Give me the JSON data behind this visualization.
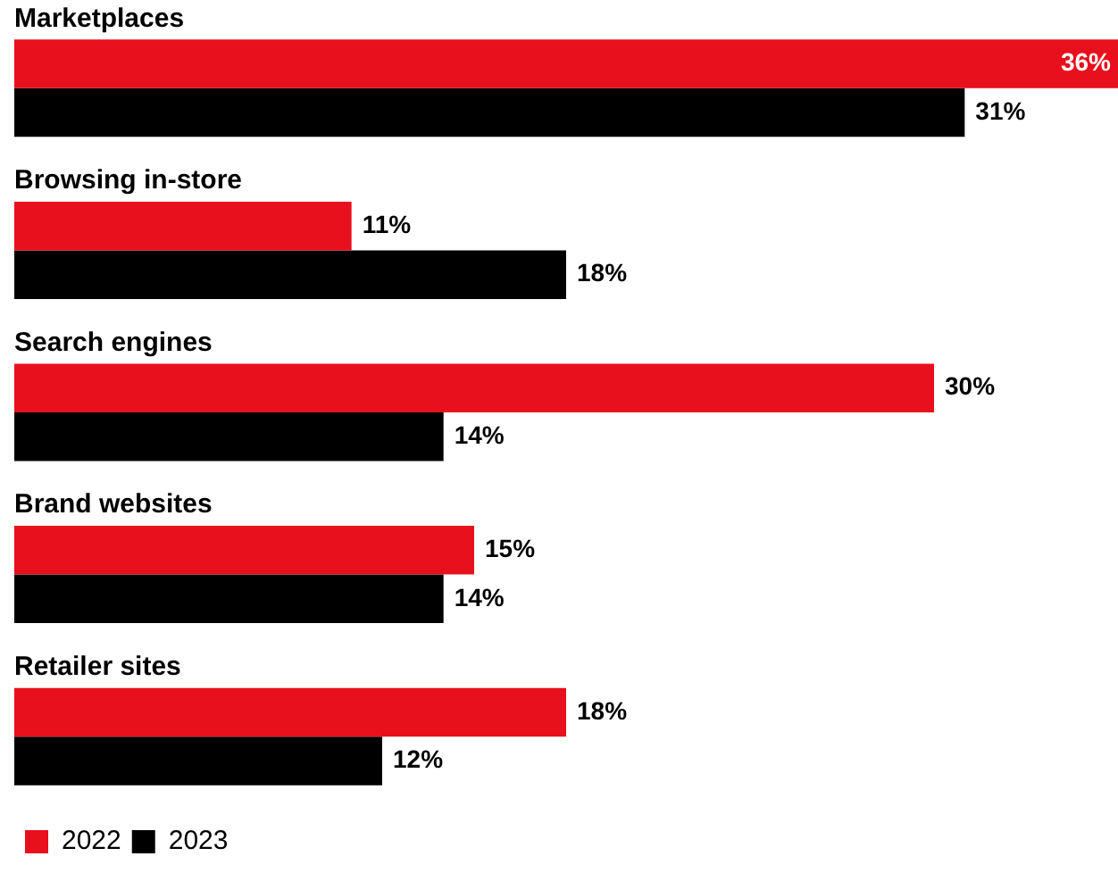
{
  "chart_data": {
    "type": "bar",
    "orientation": "horizontal",
    "categories": [
      "Marketplaces",
      "Browsing in-store",
      "Search engines",
      "Brand websites",
      "Retailer sites"
    ],
    "series": [
      {
        "name": "2022",
        "color": "#e8101c",
        "values": [
          36,
          11,
          30,
          15,
          18
        ],
        "value_labels": [
          "36%",
          "11%",
          "30%",
          "15%",
          "18%"
        ]
      },
      {
        "name": "2023",
        "color": "#000000",
        "values": [
          31,
          18,
          14,
          14,
          12
        ],
        "value_labels": [
          "31%",
          "18%",
          "14%",
          "14%",
          "12%"
        ]
      }
    ],
    "xlim": [
      0,
      36
    ],
    "legend": "bottom left",
    "tick_labels": "y"
  }
}
